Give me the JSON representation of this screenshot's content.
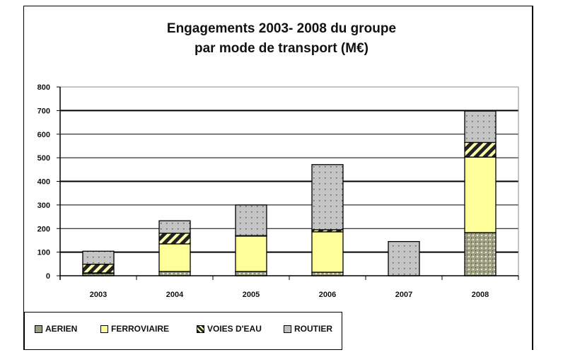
{
  "chart_data": {
    "type": "bar",
    "stacked": true,
    "title": "Engagements 2003- 2008 du groupe",
    "subtitle": "par mode de transport (M€)",
    "xlabel": "",
    "ylabel": "",
    "ylim": [
      0,
      800
    ],
    "yticks": [
      "0",
      "100",
      "200",
      "300",
      "400",
      "500",
      "600",
      "700",
      "800"
    ],
    "categories": [
      "2003",
      "2004",
      "2005",
      "2006",
      "2007",
      "2008"
    ],
    "series": [
      {
        "name": "AERIEN",
        "color": "#9c9c80",
        "values": [
          10,
          18,
          18,
          15,
          0,
          183
        ]
      },
      {
        "name": "FERROVIAIRE",
        "color": "#ffff99",
        "values": [
          2,
          117,
          150,
          171,
          0,
          320
        ]
      },
      {
        "name": "VOIES D'EAU",
        "color": "#333333",
        "values": [
          37,
          45,
          2,
          9,
          0,
          62
        ]
      },
      {
        "name": "ROUTIER",
        "color": "#c0c0c0",
        "values": [
          55,
          53,
          130,
          276,
          145,
          133
        ]
      }
    ],
    "grid": true,
    "legend": "bottom-left"
  }
}
